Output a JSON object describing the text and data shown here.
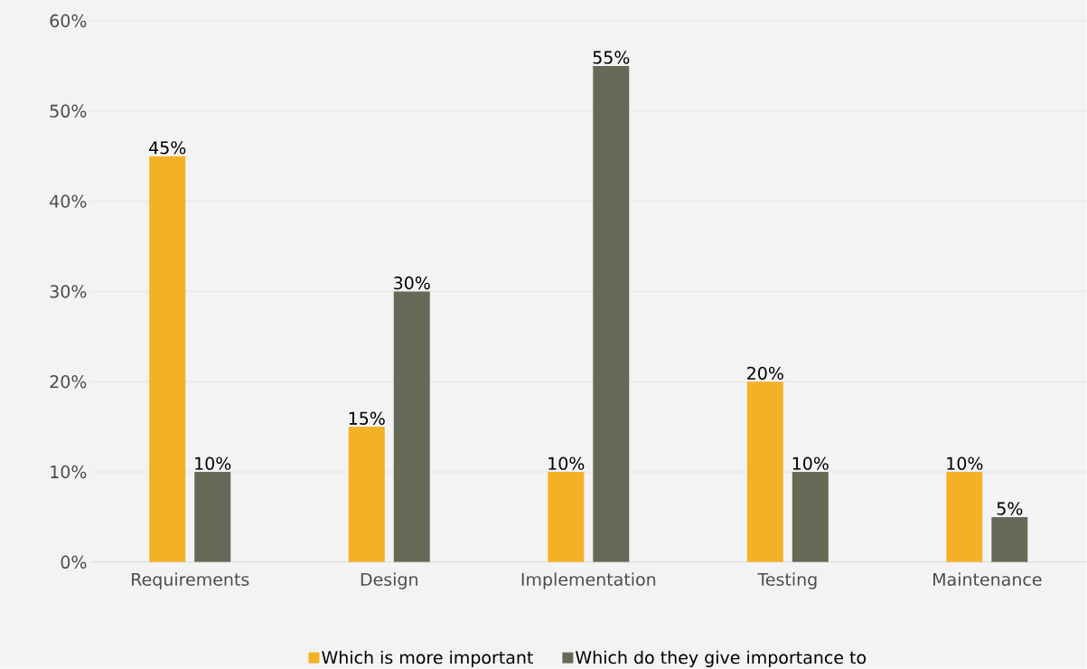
{
  "chart_data": {
    "type": "bar",
    "categories": [
      "Requirements",
      "Design",
      "Implementation",
      "Testing",
      "Maintenance"
    ],
    "series": [
      {
        "name": "Which is more important",
        "color": "#f5b125",
        "values": [
          45,
          15,
          10,
          20,
          10
        ],
        "value_labels": [
          "45%",
          "15%",
          "10%",
          "20%",
          "10%"
        ]
      },
      {
        "name": "Which do they give importance to",
        "color": "#656a57",
        "values": [
          10,
          30,
          55,
          10,
          5
        ],
        "value_labels": [
          "10%",
          "30%",
          "55%",
          "10%",
          "5%"
        ]
      }
    ],
    "ylim": [
      0,
      60
    ],
    "yticks": [
      {
        "value": 0,
        "label": "0%"
      },
      {
        "value": 10,
        "label": "10%"
      },
      {
        "value": 20,
        "label": "20%"
      },
      {
        "value": 30,
        "label": "30%"
      },
      {
        "value": 40,
        "label": "40%"
      },
      {
        "value": 50,
        "label": "50%"
      },
      {
        "value": 60,
        "label": "60%"
      }
    ],
    "grid": "y",
    "legend": "bottom"
  }
}
